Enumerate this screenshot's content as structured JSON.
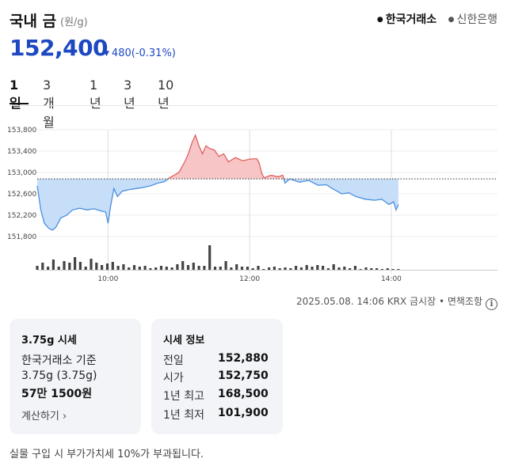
{
  "header": {
    "title": "국내 금",
    "unit": "(원/g)",
    "sources": [
      {
        "label": "한국거래소",
        "active": true
      },
      {
        "label": "신한은행",
        "active": false
      }
    ]
  },
  "price": {
    "current": "152,400",
    "change": "480",
    "change_pct": "(-0.31%)",
    "direction": "down",
    "color": "#1c48c2"
  },
  "tabs": [
    "1일",
    "3개월",
    "1년",
    "3년",
    "10년"
  ],
  "active_tab": "1일",
  "chart_data": {
    "type": "area",
    "y_ticks": [
      "153,800",
      "153,400",
      "153,000",
      "152,600",
      "152,200",
      "151,800"
    ],
    "x_ticks": [
      "10:00",
      "12:00",
      "14:00"
    ],
    "ylim": [
      151800,
      153800
    ],
    "x_range": [
      "09:00",
      "15:30"
    ],
    "baseline": 152880,
    "baseline_label": "전일",
    "up_color": "#e06060",
    "down_color": "#4b8fdf",
    "series": [
      {
        "points": [
          [
            "09:00",
            152750
          ],
          [
            "09:03",
            152300
          ],
          [
            "09:06",
            152050
          ],
          [
            "09:10",
            151950
          ],
          [
            "09:13",
            151920
          ],
          [
            "09:16",
            151980
          ],
          [
            "09:20",
            152150
          ],
          [
            "09:25",
            152200
          ],
          [
            "09:30",
            152300
          ],
          [
            "09:36",
            152330
          ],
          [
            "09:42",
            152300
          ],
          [
            "09:48",
            152320
          ],
          [
            "09:54",
            152280
          ],
          [
            "09:58",
            152260
          ],
          [
            "10:00",
            152050
          ],
          [
            "10:02",
            152350
          ],
          [
            "10:05",
            152700
          ],
          [
            "10:08",
            152550
          ],
          [
            "10:12",
            152650
          ],
          [
            "10:18",
            152680
          ],
          [
            "10:24",
            152700
          ],
          [
            "10:30",
            152720
          ],
          [
            "10:36",
            152750
          ],
          [
            "10:42",
            152800
          ],
          [
            "10:48",
            152830
          ],
          [
            "10:52",
            152900
          ],
          [
            "10:56",
            152950
          ],
          [
            "11:00",
            153000
          ],
          [
            "11:05",
            153200
          ],
          [
            "11:08",
            153350
          ],
          [
            "11:11",
            153550
          ],
          [
            "11:14",
            153700
          ],
          [
            "11:17",
            153500
          ],
          [
            "11:20",
            153350
          ],
          [
            "11:23",
            153500
          ],
          [
            "11:26",
            153450
          ],
          [
            "11:30",
            153420
          ],
          [
            "11:34",
            153300
          ],
          [
            "11:38",
            153350
          ],
          [
            "11:42",
            153200
          ],
          [
            "11:48",
            153280
          ],
          [
            "11:54",
            153220
          ],
          [
            "12:00",
            153250
          ],
          [
            "12:06",
            153260
          ],
          [
            "12:08",
            153180
          ],
          [
            "12:10",
            153000
          ],
          [
            "12:12",
            152900
          ],
          [
            "12:18",
            152950
          ],
          [
            "12:24",
            152920
          ],
          [
            "12:28",
            152950
          ],
          [
            "12:30",
            152800
          ],
          [
            "12:34",
            152880
          ],
          [
            "12:42",
            152820
          ],
          [
            "12:50",
            152850
          ],
          [
            "12:58",
            152760
          ],
          [
            "13:05",
            152770
          ],
          [
            "13:10",
            152700
          ],
          [
            "13:14",
            152650
          ],
          [
            "13:18",
            152600
          ],
          [
            "13:24",
            152620
          ],
          [
            "13:30",
            152550
          ],
          [
            "13:38",
            152500
          ],
          [
            "13:46",
            152480
          ],
          [
            "13:52",
            152500
          ],
          [
            "13:58",
            152400
          ],
          [
            "14:02",
            152450
          ],
          [
            "14:04",
            152300
          ],
          [
            "14:06",
            152400
          ]
        ]
      }
    ],
    "volume": [
      5,
      9,
      4,
      13,
      4,
      11,
      9,
      16,
      10,
      4,
      14,
      9,
      6,
      8,
      10,
      5,
      7,
      3,
      6,
      4,
      5,
      2,
      3,
      5,
      4,
      3,
      7,
      11,
      6,
      9,
      5,
      5,
      31,
      4,
      4,
      11,
      3,
      7,
      4,
      4,
      2,
      5,
      1,
      3,
      4,
      2,
      3,
      2,
      5,
      3,
      6,
      4,
      6,
      5,
      2,
      7,
      3,
      4,
      2,
      5,
      1,
      3,
      2,
      2,
      1,
      2,
      1,
      1
    ]
  },
  "asof": "2025.05.08. 14:06 KRX 금시장 • 면책조항",
  "card_spot": {
    "title": "3.75g 시세",
    "basis": "한국거래소 기준",
    "weight": "3.75g (3.75g)",
    "amount": "57만 1500원",
    "link": "계산하기 ›"
  },
  "card_info": {
    "title": "시세 정보",
    "rows": [
      {
        "label": "전일",
        "value": "152,880"
      },
      {
        "label": "시가",
        "value": "152,750"
      },
      {
        "label": "1년 최고",
        "value": "168,500"
      },
      {
        "label": "1년 최저",
        "value": "101,900"
      }
    ]
  },
  "note": "실물 구입 시 부가가치세 10%가 부과됩니다."
}
